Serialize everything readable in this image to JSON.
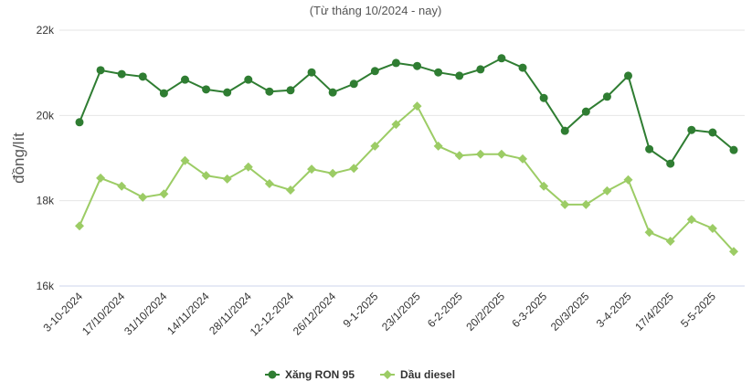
{
  "chart_data": {
    "type": "line",
    "subtitle": "(Từ tháng 10/2024 - nay)",
    "y_label": "đồng/lít",
    "categories": [
      "3-10-2024",
      null,
      "17/10/2024",
      null,
      "31/10/2024",
      null,
      "14/11/2024",
      null,
      "28/11/2024",
      null,
      "12-12-2024",
      null,
      "26/12/2024",
      null,
      "9-1-2025",
      null,
      "23/1/2025",
      null,
      "6-2-2025",
      null,
      "20/2/2025",
      null,
      "6-3-2025",
      null,
      "20/3/2025",
      null,
      "3-4-2025",
      null,
      "17/4/2025",
      null,
      "5-5-2025",
      null
    ],
    "series": [
      {
        "name": "Xăng RON 95",
        "color": "#2f7d32",
        "marker": "circle",
        "values": [
          19840,
          21060,
          20970,
          20910,
          20520,
          20840,
          20610,
          20540,
          20840,
          20560,
          20590,
          21010,
          20540,
          20740,
          21040,
          21230,
          21160,
          21010,
          20930,
          21080,
          21340,
          21120,
          20410,
          19640,
          20090,
          20440,
          20930,
          19210,
          18870,
          19660,
          19600,
          19190
        ]
      },
      {
        "name": "Dầu diesel",
        "color": "#9ccc65",
        "marker": "diamond",
        "values": [
          17410,
          18530,
          18340,
          18080,
          18160,
          18940,
          18590,
          18510,
          18790,
          18400,
          18250,
          18740,
          18640,
          18760,
          19280,
          19790,
          20220,
          19280,
          19060,
          19090,
          19090,
          18980,
          18340,
          17910,
          17910,
          18230,
          18490,
          17260,
          17050,
          17560,
          17350,
          16810
        ]
      }
    ],
    "ylim": [
      16000,
      22000
    ],
    "yticks": [
      {
        "value": 16000,
        "label": "16k"
      },
      {
        "value": 18000,
        "label": "18k"
      },
      {
        "value": 20000,
        "label": "20k"
      },
      {
        "value": 22000,
        "label": "22k"
      }
    ],
    "grid": true,
    "legend": "bottom"
  }
}
